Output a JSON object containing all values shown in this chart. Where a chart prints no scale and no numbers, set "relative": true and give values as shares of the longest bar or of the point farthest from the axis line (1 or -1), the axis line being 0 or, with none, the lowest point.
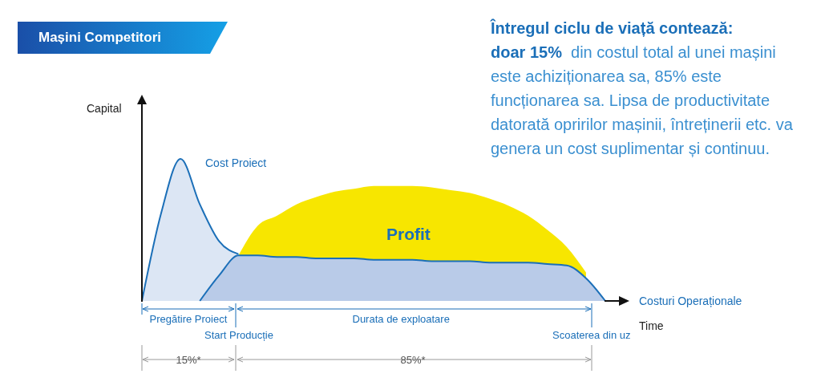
{
  "chart_data": {
    "type": "area",
    "title": "Mașini Competitori",
    "subtitle": "Întregul ciclu de viață contează:",
    "xlabel": "Time",
    "ylabel": "Capital",
    "relative": true,
    "categories": [
      null,
      null,
      null,
      null,
      null,
      null,
      null,
      null,
      null,
      null,
      null,
      null,
      null,
      null,
      null,
      null,
      null,
      null,
      null,
      null,
      null,
      null,
      null,
      null,
      null
    ],
    "series": [
      {
        "name": "Profit",
        "color": "#f7e600",
        "values": [
          null,
          null,
          null,
          null,
          null,
          0.32,
          0.53,
          0.6,
          0.68,
          0.73,
          0.77,
          0.79,
          0.81,
          0.81,
          0.81,
          0.8,
          0.78,
          0.76,
          0.72,
          0.67,
          0.6,
          0.5,
          0.38,
          0.2,
          null
        ]
      },
      {
        "name": "Cost Proiect",
        "color": "#dce6f4",
        "values": [
          0,
          0.62,
          1,
          0.68,
          0.42,
          0.33,
          null,
          null,
          null,
          null,
          null,
          null,
          null,
          null,
          null,
          null,
          null,
          null,
          null,
          null,
          null,
          null,
          null,
          null,
          null
        ]
      },
      {
        "name": "Costuri Operaționale",
        "color": "#b9cbe8",
        "values": [
          null,
          null,
          null,
          0,
          0.18,
          0.32,
          0.32,
          0.31,
          0.31,
          0.3,
          0.3,
          0.3,
          0.29,
          0.29,
          0.29,
          0.28,
          0.28,
          0.28,
          0.27,
          0.27,
          0.27,
          0.26,
          0.25,
          0.16,
          0
        ]
      }
    ],
    "annotations": [
      "doar 15%",
      "din costul total al unei mașini este achiziționarea sa, 85% este funcționarea sa. Lipsa de productivitate datorată opririlor mașinii, întreținerii etc. va genera un cost suplimentar și continuu.",
      "Pregătire Proiect",
      "Start Producție",
      "Durata de exploatare",
      "Scoaterea din uz",
      "15%*",
      "85%*"
    ]
  }
}
